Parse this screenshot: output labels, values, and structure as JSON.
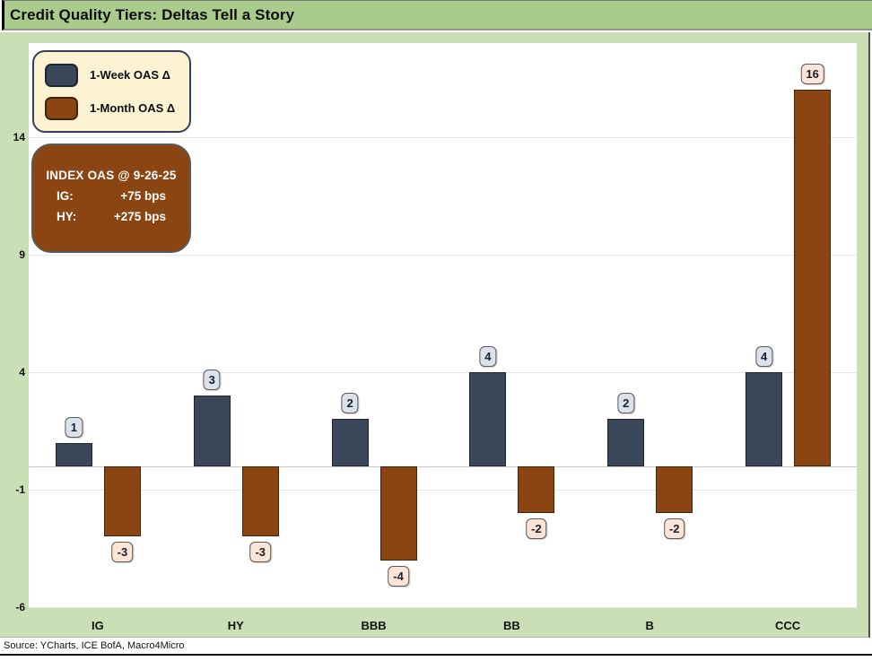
{
  "title": "Credit Quality Tiers: Deltas Tell a Story",
  "source": "Source: YCharts, ICE BofA, Macro4Micro",
  "legend": {
    "items": [
      {
        "label": "1-Week OAS Δ"
      },
      {
        "label": "1-Month OAS Δ"
      }
    ]
  },
  "annotation": {
    "heading": "INDEX OAS @ 9-26-25",
    "rows": [
      {
        "label": "IG:",
        "value": "+75 bps"
      },
      {
        "label": "HY:",
        "value": "+275 bps"
      }
    ]
  },
  "chart_data": {
    "type": "bar",
    "title": "Credit Quality Tiers: Deltas Tell a Story",
    "categories": [
      "IG",
      "HY",
      "BBB",
      "BB",
      "B",
      "CCC"
    ],
    "series": [
      {
        "name": "1-Week OAS Δ",
        "color": "#3a4759",
        "border": "#1c2531",
        "label_bg": "#dbe2ec",
        "values": [
          1,
          3,
          2,
          4,
          2,
          4
        ]
      },
      {
        "name": "1-Month OAS Δ",
        "color": "#8b4513",
        "border": "#3f250d",
        "label_bg": "#fce4d6",
        "values": [
          -3,
          -3,
          -4,
          -2,
          -2,
          16
        ]
      }
    ],
    "yticks": [
      -6,
      -1,
      4,
      9,
      14
    ],
    "ylim": [
      -6,
      18
    ],
    "grid": true,
    "legend_position": "top-left",
    "xlabel": "",
    "ylabel": ""
  },
  "colors": {
    "title_bar_bg": "#a9cc8d",
    "chart_bg": "#cadfb5",
    "plot_bg": "#ffffff",
    "gridline": "#e4e4e4",
    "zero_line": "#c9c9c9",
    "legend_bg": "#fdf3d3",
    "legend_border": "#32405a",
    "annotation_bg": "#8b4513",
    "annotation_border": "#595959",
    "annotation_text": "#ffffff",
    "label_border": "#595959"
  }
}
